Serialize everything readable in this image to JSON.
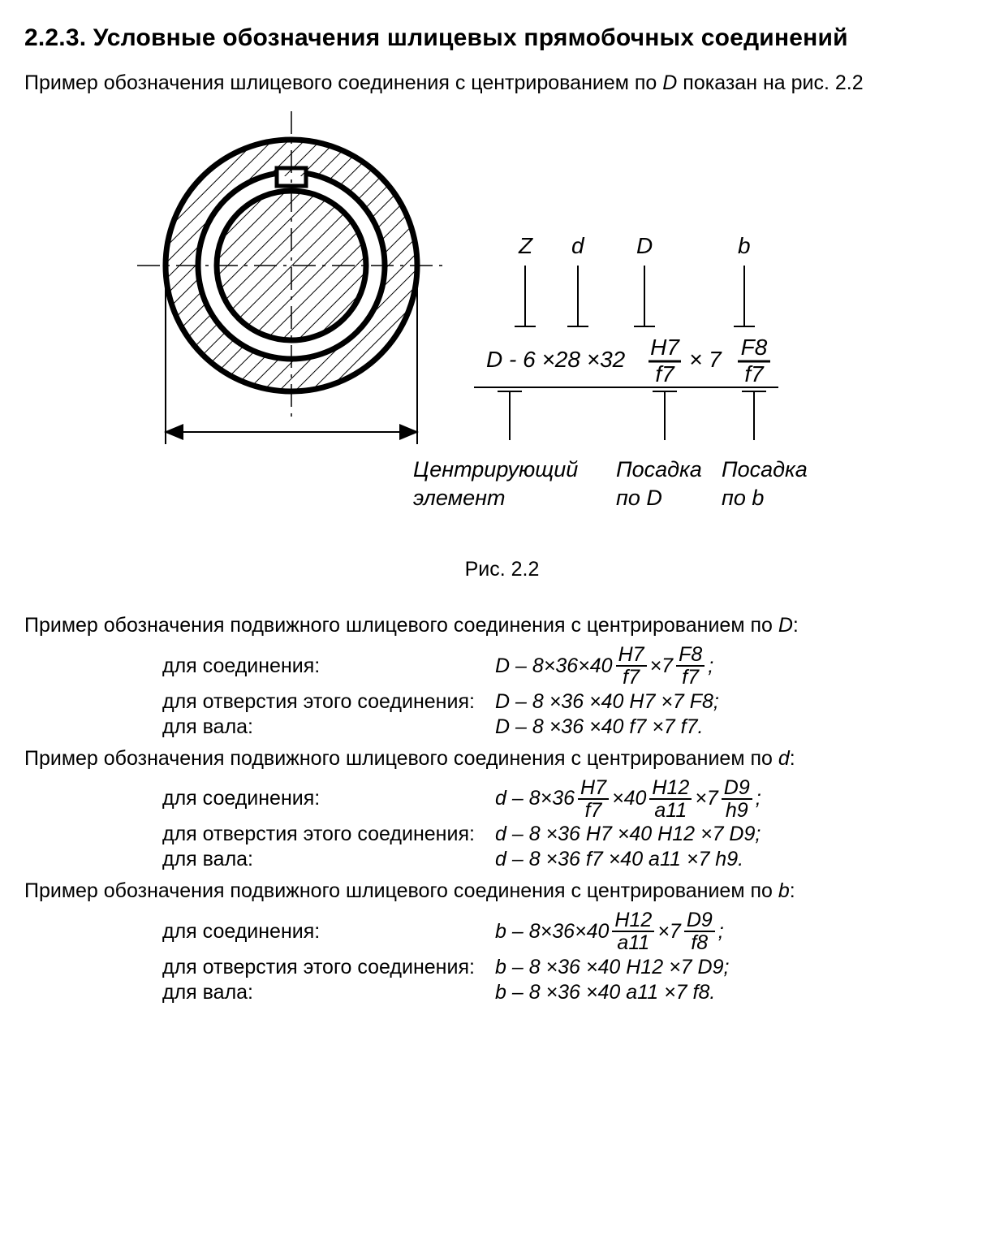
{
  "heading": "2.2.3. Условные обозначения шлицевых прямобочных соединений",
  "intro_prefix": "Пример обозначения шлицевого соединения с центрированием по ",
  "intro_var": "D",
  "intro_suffix": " показан на рис. 2.2",
  "figure_caption": "Рис. 2.2",
  "diagram": {
    "top_labels": {
      "Z": "Z",
      "d": "d",
      "D": "D",
      "b": "b"
    },
    "formula": {
      "lead": "D - 6 ×28 ×32",
      "frac1_num": "H7",
      "frac1_den": "f7",
      "mid": "× 7",
      "frac2_num": "F8",
      "frac2_den": "f7"
    },
    "bottom_labels": {
      "centering1": "Центрирующий",
      "centering2": "элемент",
      "fitD1": "Посадка",
      "fitD2": "по D",
      "fitb1": "Посадка",
      "fitb2": "по b"
    }
  },
  "examples": [
    {
      "title_prefix": "Пример обозначения подвижного шлицевого соединения с центрированием по ",
      "title_var": "D",
      "rows": [
        {
          "label": "для соединения:",
          "parts": [
            "D – 8×36×40",
            {
              "num": "H7",
              "den": "f7"
            },
            "×7",
            {
              "num": "F8",
              "den": "f7"
            },
            ";"
          ]
        },
        {
          "label": "для отверстия этого соединения:",
          "parts": [
            "D – 8 ×36 ×40 H7 ×7 F8;"
          ]
        },
        {
          "label": "для вала:",
          "parts": [
            "D – 8 ×36 ×40 f7 ×7 f7."
          ]
        }
      ]
    },
    {
      "title_prefix": "Пример обозначения подвижного шлицевого соединения с центрированием по ",
      "title_var": "d",
      "rows": [
        {
          "label": "для соединения:",
          "parts": [
            "d – 8×36",
            {
              "num": "H7",
              "den": "f7"
            },
            "×40",
            {
              "num": "H12",
              "den": "a11"
            },
            "×7",
            {
              "num": "D9",
              "den": "h9"
            },
            ";"
          ]
        },
        {
          "label": "для отверстия этого соединения:",
          "parts": [
            "d – 8 ×36 H7 ×40 H12 ×7 D9;"
          ]
        },
        {
          "label": "для вала:",
          "parts": [
            "d – 8 ×36 f7 ×40 a11 ×7 h9."
          ]
        }
      ]
    },
    {
      "title_prefix": "Пример обозначения подвижного шлицевого соединения с центрированием по ",
      "title_var": "b",
      "rows": [
        {
          "label": "для соединения:",
          "parts": [
            "b – 8×36×40",
            {
              "num": "H12",
              "den": "a11"
            },
            "×7",
            {
              "num": "D9",
              "den": "f8"
            },
            ";"
          ]
        },
        {
          "label": "для отверстия этого соединения:",
          "parts": [
            "b – 8 ×36 ×40 H12 ×7 D9;"
          ]
        },
        {
          "label": "для вала:",
          "parts": [
            "b – 8 ×36 ×40 a11 ×7 f8."
          ]
        }
      ]
    }
  ]
}
